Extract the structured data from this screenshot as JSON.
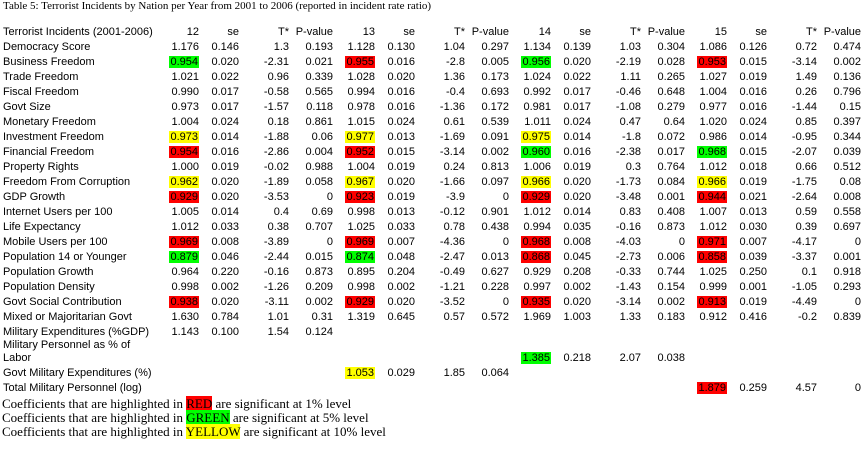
{
  "title": "Table 5: Terrorist Incidents by Nation per Year from 2001 to 2006 (reported in incident rate ratio)",
  "table": {
    "header": [
      "Terrorist Incidents (2001-2006)",
      "12",
      "se",
      "T*",
      "P-value",
      "13",
      "se",
      "T*",
      "P-value",
      "14",
      "se",
      "T*",
      "P-value",
      "15",
      "se",
      "T*",
      "P-value"
    ],
    "rows": [
      {
        "label": "Democracy Score",
        "cells": [
          "1.176",
          "0.146",
          "1.3",
          "0.193",
          "1.128",
          "0.130",
          "1.04",
          "0.297",
          "1.134",
          "0.139",
          "1.03",
          "0.304",
          "1.086",
          "0.126",
          "0.72",
          "0.474"
        ]
      },
      {
        "label": "Business Freedom",
        "cells": [
          {
            "text": "0.954",
            "color": "#00ff00"
          },
          "0.020",
          "-2.31",
          "0.021",
          {
            "text": "0.955",
            "color": "#ff0000"
          },
          "0.016",
          "-2.8",
          "0.005",
          {
            "text": "0.956",
            "color": "#00ff00"
          },
          "0.020",
          "-2.19",
          "0.028",
          {
            "text": "0.953",
            "color": "#ff0000"
          },
          "0.015",
          "-3.14",
          "0.002"
        ]
      },
      {
        "label": "Trade Freedom",
        "cells": [
          "1.021",
          "0.022",
          "0.96",
          "0.339",
          "1.028",
          "0.020",
          "1.36",
          "0.173",
          "1.024",
          "0.022",
          "1.11",
          "0.265",
          "1.027",
          "0.019",
          "1.49",
          "0.136"
        ]
      },
      {
        "label": "Fiscal Freedom",
        "cells": [
          "0.990",
          "0.017",
          "-0.58",
          "0.565",
          "0.994",
          "0.016",
          "-0.4",
          "0.693",
          "0.992",
          "0.017",
          "-0.46",
          "0.648",
          "1.004",
          "0.016",
          "0.26",
          "0.796"
        ]
      },
      {
        "label": "Govt Size",
        "cells": [
          "0.973",
          "0.017",
          "-1.57",
          "0.118",
          "0.978",
          "0.016",
          "-1.36",
          "0.172",
          "0.981",
          "0.017",
          "-1.08",
          "0.279",
          "0.977",
          "0.016",
          "-1.44",
          "0.15"
        ]
      },
      {
        "label": "Monetary Freedom",
        "cells": [
          "1.004",
          "0.024",
          "0.18",
          "0.861",
          "1.015",
          "0.024",
          "0.61",
          "0.539",
          "1.011",
          "0.024",
          "0.47",
          "0.64",
          "1.020",
          "0.024",
          "0.85",
          "0.397"
        ]
      },
      {
        "label": "Investment Freedom",
        "cells": [
          {
            "text": "0.973",
            "color": "#ffff00"
          },
          "0.014",
          "-1.88",
          "0.06",
          {
            "text": "0.977",
            "color": "#ffff00"
          },
          "0.013",
          "-1.69",
          "0.091",
          {
            "text": "0.975",
            "color": "#ffff00"
          },
          "0.014",
          "-1.8",
          "0.072",
          "0.986",
          "0.014",
          "-0.95",
          "0.344"
        ]
      },
      {
        "label": "Financial Freedom",
        "cells": [
          {
            "text": "0.954",
            "color": "#ff0000"
          },
          "0.016",
          "-2.86",
          "0.004",
          {
            "text": "0.952",
            "color": "#ff0000"
          },
          "0.015",
          "-3.14",
          "0.002",
          {
            "text": "0.960",
            "color": "#00ff00"
          },
          "0.016",
          "-2.38",
          "0.017",
          {
            "text": "0.968",
            "color": "#00ff00"
          },
          "0.015",
          "-2.07",
          "0.039"
        ]
      },
      {
        "label": "Property Rights",
        "cells": [
          "1.000",
          "0.019",
          "-0.02",
          "0.988",
          "1.004",
          "0.019",
          "0.24",
          "0.813",
          "1.006",
          "0.019",
          "0.3",
          "0.764",
          "1.012",
          "0.018",
          "0.66",
          "0.512"
        ]
      },
      {
        "label": "Freedom From Corruption",
        "cells": [
          {
            "text": "0.962",
            "color": "#ffff00"
          },
          "0.020",
          "-1.89",
          "0.058",
          {
            "text": "0.967",
            "color": "#ffff00"
          },
          "0.020",
          "-1.66",
          "0.097",
          {
            "text": "0.966",
            "color": "#ffff00"
          },
          "0.020",
          "-1.73",
          "0.084",
          {
            "text": "0.966",
            "color": "#ffff00"
          },
          "0.019",
          "-1.75",
          "0.08"
        ]
      },
      {
        "label": "GDP Growth",
        "cells": [
          {
            "text": "0.929",
            "color": "#ff0000"
          },
          "0.020",
          "-3.53",
          "0",
          {
            "text": "0.923",
            "color": "#ff0000"
          },
          "0.019",
          "-3.9",
          "0",
          {
            "text": "0.929",
            "color": "#ff0000"
          },
          "0.020",
          "-3.48",
          "0.001",
          {
            "text": "0.944",
            "color": "#ff0000"
          },
          "0.021",
          "-2.64",
          "0.008"
        ]
      },
      {
        "label": "Internet Users per 100",
        "cells": [
          "1.005",
          "0.014",
          "0.4",
          "0.69",
          "0.998",
          "0.013",
          "-0.12",
          "0.901",
          "1.012",
          "0.014",
          "0.83",
          "0.408",
          "1.007",
          "0.013",
          "0.59",
          "0.558"
        ]
      },
      {
        "label": "Life Expectancy",
        "cells": [
          "1.012",
          "0.033",
          "0.38",
          "0.707",
          "1.025",
          "0.033",
          "0.78",
          "0.438",
          "0.994",
          "0.035",
          "-0.16",
          "0.873",
          "1.012",
          "0.030",
          "0.39",
          "0.697"
        ]
      },
      {
        "label": "Mobile Users per 100",
        "cells": [
          {
            "text": "0.969",
            "color": "#ff0000"
          },
          "0.008",
          "-3.89",
          "0",
          {
            "text": "0.969",
            "color": "#ff0000"
          },
          "0.007",
          "-4.36",
          "0",
          {
            "text": "0.968",
            "color": "#ff0000"
          },
          "0.008",
          "-4.03",
          "0",
          {
            "text": "0.971",
            "color": "#ff0000"
          },
          "0.007",
          "-4.17",
          "0"
        ]
      },
      {
        "label": "Population 14 or Younger",
        "cells": [
          {
            "text": "0.879",
            "color": "#00ff00"
          },
          "0.046",
          "-2.44",
          "0.015",
          {
            "text": "0.874",
            "color": "#00ff00"
          },
          "0.048",
          "-2.47",
          "0.013",
          {
            "text": "0.868",
            "color": "#ff0000"
          },
          "0.045",
          "-2.73",
          "0.006",
          {
            "text": "0.858",
            "color": "#ff0000"
          },
          "0.039",
          "-3.37",
          "0.001"
        ]
      },
      {
        "label": "Population Growth",
        "cells": [
          "0.964",
          "0.220",
          "-0.16",
          "0.873",
          "0.895",
          "0.204",
          "-0.49",
          "0.627",
          "0.929",
          "0.208",
          "-0.33",
          "0.744",
          "1.025",
          "0.250",
          "0.1",
          "0.918"
        ]
      },
      {
        "label": "Population Density",
        "cells": [
          "0.998",
          "0.002",
          "-1.26",
          "0.209",
          "0.998",
          "0.002",
          "-1.21",
          "0.228",
          "0.997",
          "0.002",
          "-1.43",
          "0.154",
          "0.999",
          "0.001",
          "-1.05",
          "0.293"
        ]
      },
      {
        "label": "Govt Social Contribution",
        "cells": [
          {
            "text": "0.938",
            "color": "#ff0000"
          },
          "0.020",
          "-3.11",
          "0.002",
          {
            "text": "0.929",
            "color": "#ff0000"
          },
          "0.020",
          "-3.52",
          "0",
          {
            "text": "0.935",
            "color": "#ff0000"
          },
          "0.020",
          "-3.14",
          "0.002",
          {
            "text": "0.913",
            "color": "#ff0000"
          },
          "0.019",
          "-4.49",
          "0"
        ]
      },
      {
        "label": "Mixed or Majoritarian Govt",
        "cells": [
          "1.630",
          "0.784",
          "1.01",
          "0.31",
          "1.319",
          "0.645",
          "0.57",
          "0.572",
          "1.969",
          "1.003",
          "1.33",
          "0.183",
          "0.912",
          "0.416",
          "-0.2",
          "0.839"
        ]
      },
      {
        "label": "Military Expenditures (%GDP)",
        "cells": [
          "1.143",
          "0.100",
          "1.54",
          "0.124",
          null,
          null,
          null,
          null,
          null,
          null,
          null,
          null,
          null,
          null,
          null,
          null
        ]
      },
      {
        "label": "Military Personnel as % of Labor",
        "cells": [
          null,
          null,
          null,
          null,
          null,
          null,
          null,
          null,
          {
            "text": "1.385",
            "color": "#00ff00"
          },
          "0.218",
          "2.07",
          "0.038",
          null,
          null,
          null,
          null
        ]
      },
      {
        "label": "Govt Military Expenditures (%)",
        "cells": [
          null,
          null,
          null,
          null,
          {
            "text": "1.053",
            "color": "#ffff00"
          },
          "0.029",
          "1.85",
          "0.064",
          null,
          null,
          null,
          null,
          null,
          null,
          null,
          null
        ]
      },
      {
        "label": "Total Military Personnel (log)",
        "cells": [
          null,
          null,
          null,
          null,
          null,
          null,
          null,
          null,
          null,
          null,
          null,
          null,
          {
            "text": "1.879",
            "color": "#ff0000"
          },
          "0.259",
          "4.57",
          "0"
        ]
      }
    ]
  },
  "notes": [
    {
      "before": "Coefficients that are highlighted in ",
      "word": "RED",
      "after": " are significant at 1% level",
      "color": "#ff0000"
    },
    {
      "before": "Coefficients that are highlighted in ",
      "word": "GREEN",
      "after": " are significant at 5% level",
      "color": "#00ff00"
    },
    {
      "before": "Coefficients that are highlighted in ",
      "word": "YELLOW",
      "after": " are significant at 10% level",
      "color": "#ffff00"
    }
  ]
}
